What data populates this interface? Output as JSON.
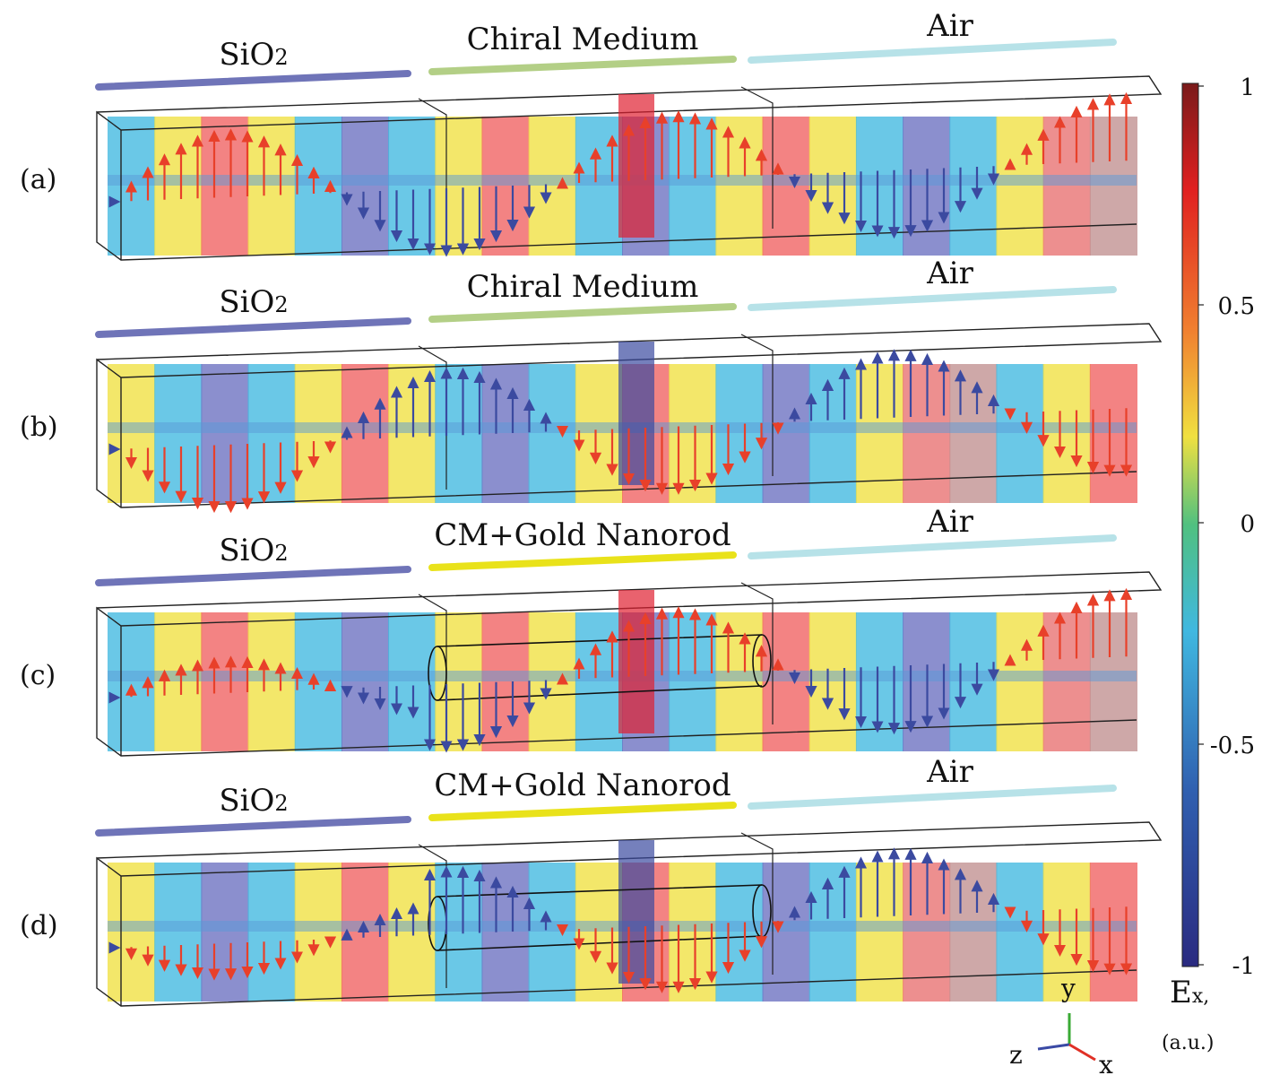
{
  "panels": [
    {
      "label": "(a)",
      "regions": [
        {
          "name": "SiO2",
          "base": "SiO",
          "sub": "2",
          "bar": "#6f74b8"
        },
        {
          "name": "Chiral Medium",
          "bar": "#b3cf86"
        },
        {
          "name": "Air",
          "bar": "#b7e2e8"
        }
      ],
      "nanorod": false,
      "field_phase": 0,
      "arrow_colors": [
        "#e8402a",
        "#3b4aa0"
      ]
    },
    {
      "label": "(b)",
      "regions": [
        {
          "name": "SiO2",
          "base": "SiO",
          "sub": "2",
          "bar": "#6f74b8"
        },
        {
          "name": "Chiral Medium",
          "bar": "#b3cf86"
        },
        {
          "name": "Air",
          "bar": "#b7e2e8"
        }
      ],
      "nanorod": false,
      "field_phase": 1,
      "arrow_colors": [
        "#3b4aa0",
        "#e8402a"
      ]
    },
    {
      "label": "(c)",
      "regions": [
        {
          "name": "SiO2",
          "base": "SiO",
          "sub": "2",
          "bar": "#6f74b8"
        },
        {
          "name": "CM+Gold Nanorod",
          "bar": "#e9e21a"
        },
        {
          "name": "Air",
          "bar": "#b7e2e8"
        }
      ],
      "nanorod": true,
      "field_phase": 0,
      "arrow_colors": [
        "#e8402a",
        "#3b4aa0"
      ]
    },
    {
      "label": "(d)",
      "regions": [
        {
          "name": "SiO2",
          "base": "SiO",
          "sub": "2",
          "bar": "#6f74b8"
        },
        {
          "name": "CM+Gold Nanorod",
          "bar": "#e9e21a"
        },
        {
          "name": "Air",
          "bar": "#b7e2e8"
        }
      ],
      "nanorod": true,
      "field_phase": 1,
      "arrow_colors": [
        "#3b4aa0",
        "#e8402a"
      ]
    }
  ],
  "colorbar": {
    "ticks": [
      "1",
      "0.5",
      "0",
      "-0.5",
      "-1"
    ],
    "label_main": "E",
    "label_sub": "x,",
    "units": "(a.u.)",
    "colors": [
      "#7a1a1a",
      "#e02020",
      "#f08030",
      "#f0e040",
      "#50c080",
      "#40b8e0",
      "#3060b0",
      "#2a2a80"
    ]
  },
  "axes": {
    "y": "y",
    "z": "z",
    "x": "x"
  }
}
